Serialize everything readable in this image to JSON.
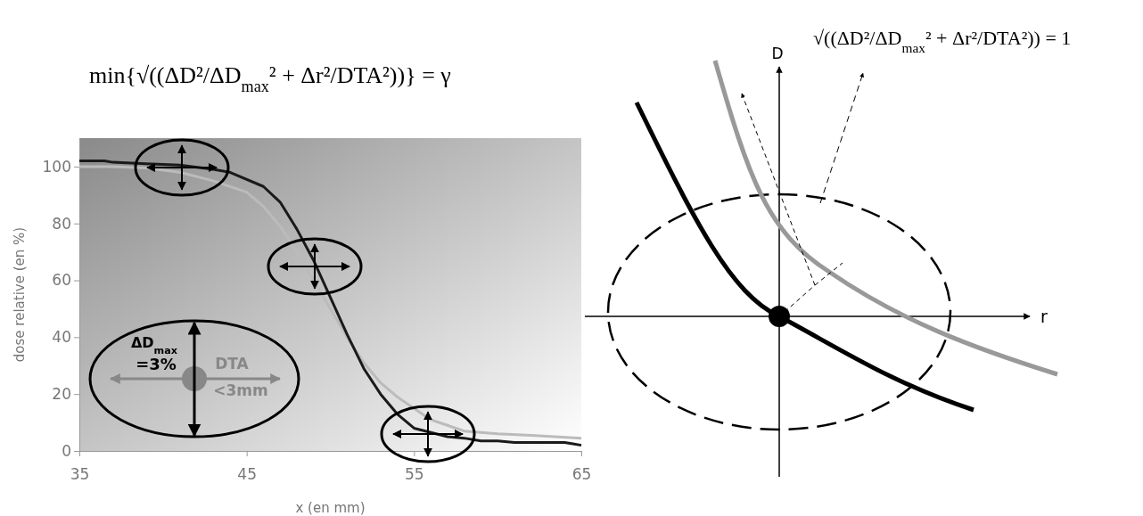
{
  "chart_data": {
    "type": "line",
    "xlabel": "x (en mm)",
    "ylabel": "dose relative (en %)",
    "xlim": [
      35,
      65
    ],
    "ylim": [
      0,
      110
    ],
    "xticks": [
      35,
      45,
      55,
      65
    ],
    "yticks": [
      0,
      20,
      40,
      60,
      80,
      100
    ],
    "grid": false,
    "marker": "none",
    "line_style": "solid",
    "series": [
      {
        "color": "#1a1a1a",
        "x": [
          35,
          36.5,
          37,
          39,
          41,
          43,
          44,
          46,
          47,
          48,
          49,
          50,
          51,
          52,
          53,
          54,
          55,
          56,
          57,
          58,
          59,
          60,
          61,
          62,
          63,
          64,
          64.5,
          65
        ],
        "values": [
          102,
          102,
          101.5,
          101,
          100.5,
          99,
          98,
          93,
          87.5,
          78,
          67,
          54,
          41,
          29,
          20,
          13,
          8,
          6.5,
          5,
          4.5,
          3.5,
          3.5,
          3,
          3,
          3,
          3,
          2.5,
          2
        ]
      },
      {
        "color": "#bbbbbb",
        "x": [
          35,
          37,
          39,
          41,
          43,
          45,
          46,
          47,
          48,
          49,
          50,
          51,
          52,
          53,
          54,
          55,
          56,
          57,
          58,
          59,
          60,
          62,
          65
        ],
        "values": [
          100,
          100,
          99.5,
          98,
          95,
          91,
          86,
          79,
          70,
          60,
          50,
          40,
          31,
          24,
          19,
          15,
          11,
          9,
          7,
          6.5,
          6,
          5.5,
          4.5
        ]
      }
    ],
    "annotations": [
      "min{√((ΔD²/ΔD$_{max}$² + Δr²/DTA²))} = γ",
      "√((ΔD²/ΔD$_{max}$² + Δr²/DTA²)) = 1",
      "ΔD$_{max}$",
      "=3%",
      "DTA",
      "<3mm",
      "D",
      "r"
    ]
  }
}
